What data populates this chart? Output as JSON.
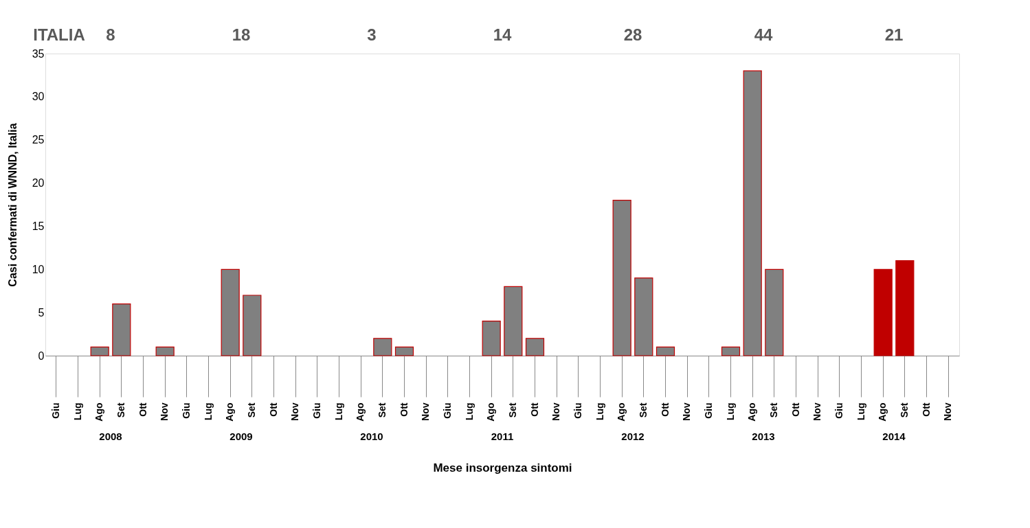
{
  "chart_data": {
    "type": "bar",
    "xlabel": "Mese insorgenza sintomi",
    "ylabel": "Casi confermati di WNND, Italia",
    "categories": [
      "Giu",
      "Lug",
      "Ago",
      "Set",
      "Ott",
      "Nov",
      "Giu",
      "Lug",
      "Ago",
      "Set",
      "Ott",
      "Nov",
      "Giu",
      "Lug",
      "Ago",
      "Set",
      "Ott",
      "Nov",
      "Giu",
      "Lug",
      "Ago",
      "Set",
      "Ott",
      "Nov",
      "Giu",
      "Lug",
      "Ago",
      "Set",
      "Ott",
      "Nov",
      "Giu",
      "Lug",
      "Ago",
      "Set",
      "Ott",
      "Nov",
      "Giu",
      "Lug",
      "Ago",
      "Set",
      "Ott",
      "Nov"
    ],
    "values": [
      0,
      0,
      1,
      6,
      0,
      1,
      0,
      0,
      10,
      7,
      0,
      0,
      0,
      0,
      0,
      2,
      1,
      0,
      0,
      0,
      4,
      8,
      2,
      0,
      0,
      0,
      18,
      9,
      1,
      0,
      0,
      1,
      33,
      10,
      0,
      0,
      0,
      0,
      10,
      11,
      0,
      0
    ],
    "colors": [
      "#808080",
      "#808080",
      "#808080",
      "#808080",
      "#808080",
      "#808080",
      "#808080",
      "#808080",
      "#808080",
      "#808080",
      "#808080",
      "#808080",
      "#808080",
      "#808080",
      "#808080",
      "#808080",
      "#808080",
      "#808080",
      "#808080",
      "#808080",
      "#808080",
      "#808080",
      "#808080",
      "#808080",
      "#808080",
      "#808080",
      "#808080",
      "#808080",
      "#808080",
      "#808080",
      "#808080",
      "#808080",
      "#808080",
      "#808080",
      "#808080",
      "#808080",
      "#c00000",
      "#c00000",
      "#c00000",
      "#c00000",
      "#c00000",
      "#c00000"
    ],
    "ylim": [
      0,
      35
    ],
    "yticks": [
      0,
      5,
      10,
      15,
      20,
      25,
      30,
      35
    ],
    "grid": false,
    "annotations": [
      "ITALIA",
      "8",
      "18",
      "3",
      "14",
      "28",
      "44",
      "21",
      "2008",
      "2009",
      "2010",
      "2011",
      "2012",
      "2013",
      "2014"
    ]
  }
}
